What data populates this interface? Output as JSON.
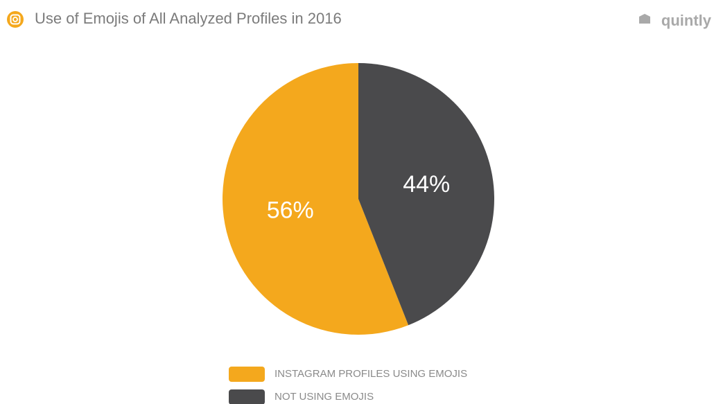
{
  "chart_data": {
    "type": "pie",
    "title": "Use of Emojis of All Analyzed Profiles in 2016",
    "brand": "quintly",
    "categories": [
      "INSTAGRAM PROFILES USING EMOJIS",
      "NOT USING EMOJIS"
    ],
    "values": [
      56,
      44
    ],
    "value_labels": [
      "56%",
      "44%"
    ],
    "colors": [
      "#f4a81d",
      "#4a4a4c"
    ],
    "legend": "bottom"
  }
}
